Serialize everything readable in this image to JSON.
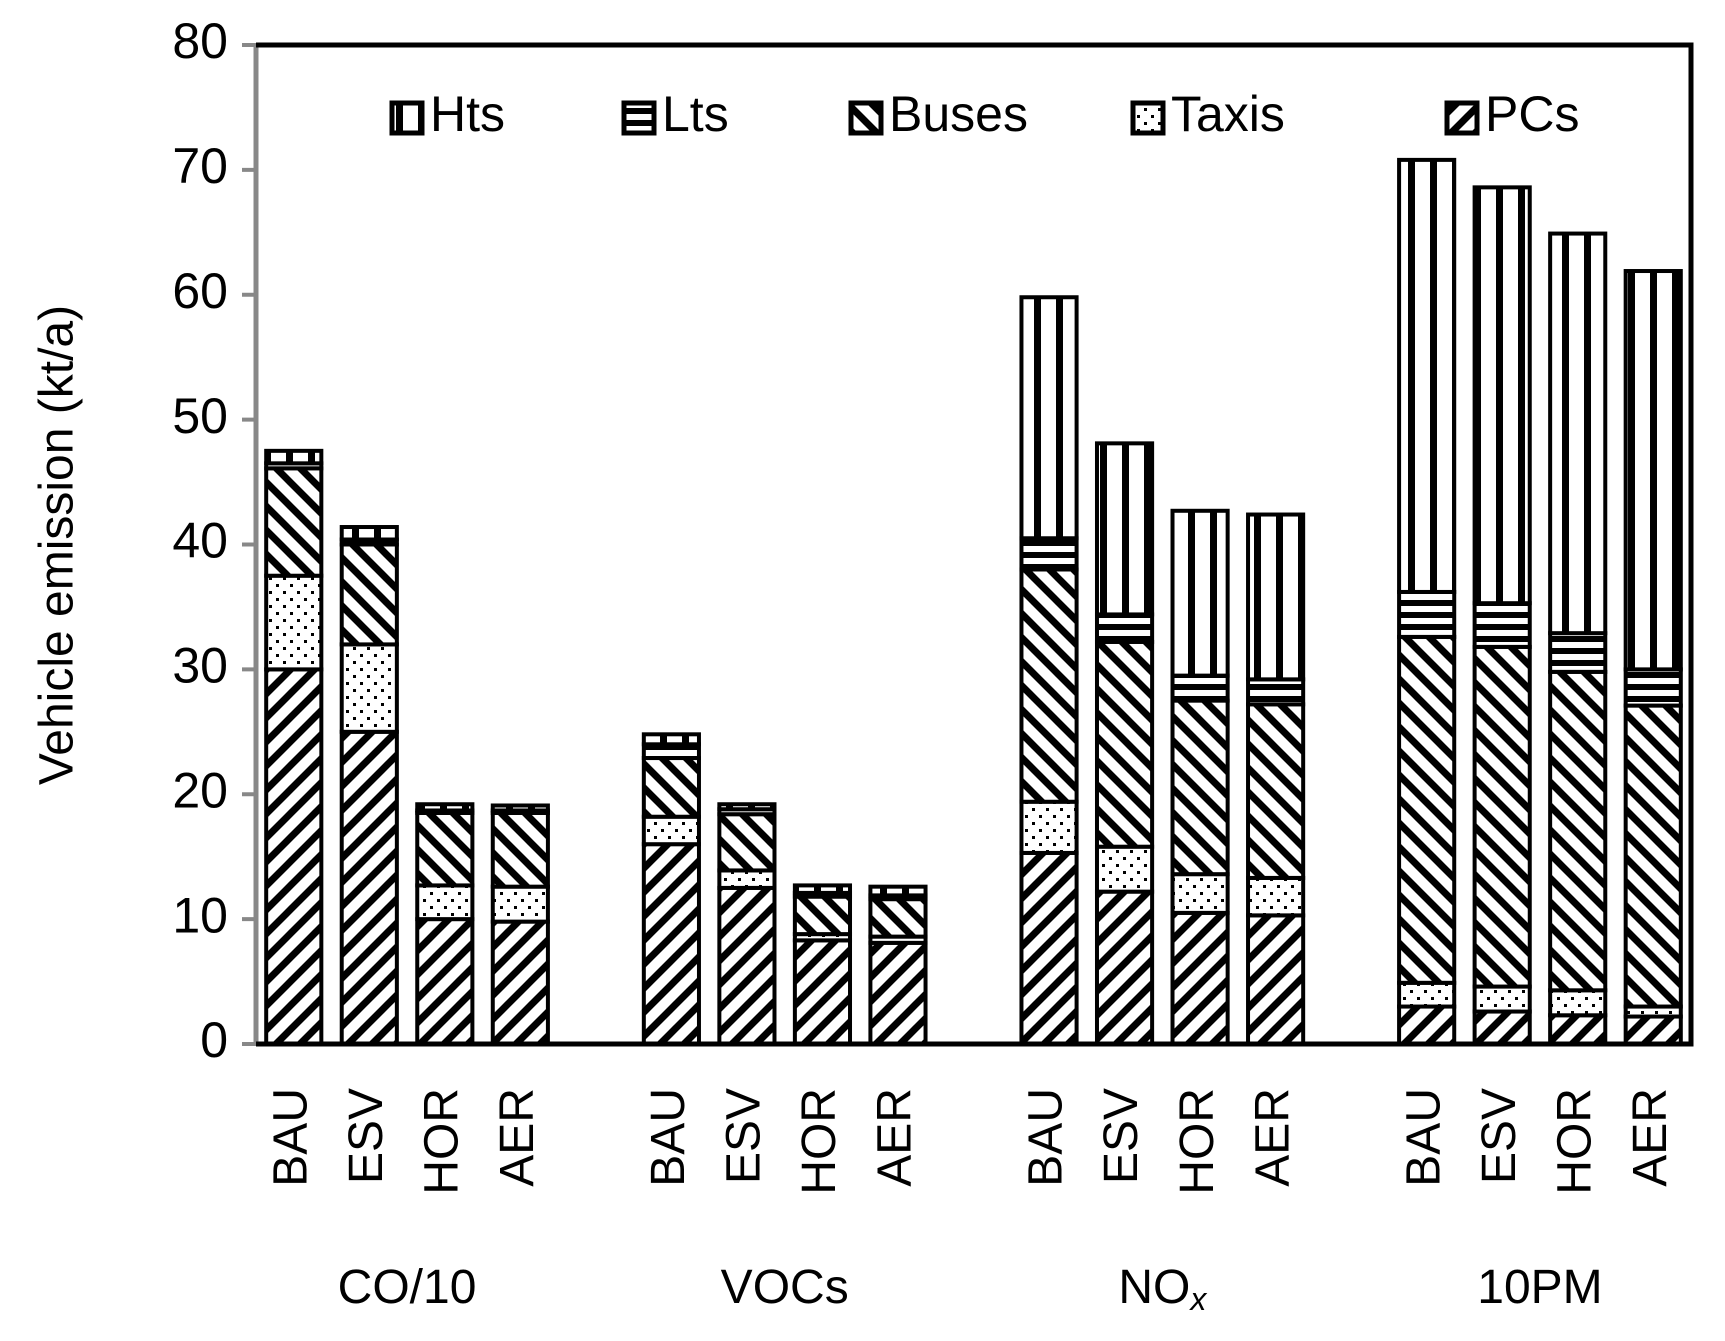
{
  "chart_data": {
    "type": "stacked-bar",
    "ylabel": "Vehicle emission (kt/a)",
    "categories": [
      "BAU",
      "ESV",
      "HOR",
      "AER",
      "BAU",
      "ESV",
      "HOR",
      "AER",
      "BAU",
      "ESV",
      "HOR",
      "AER",
      "BAU",
      "ESV",
      "HOR",
      "AER"
    ],
    "groups": [
      {
        "label": "CO/10"
      },
      {
        "label": "VOCs"
      },
      {
        "label": "NO",
        "subscript": "x"
      },
      {
        "label": "10PM"
      }
    ],
    "series": [
      {
        "name": "Hts",
        "color": "#000000",
        "pattern": "vertical",
        "values": [
          1.0,
          1.0,
          0.5,
          0.4,
          0.8,
          0.4,
          0.6,
          0.7,
          19.3,
          13.7,
          13.2,
          13.2,
          34.6,
          33.3,
          32.0,
          31.9
        ]
      },
      {
        "name": "Lts",
        "color": "#000000",
        "pattern": "horizontal",
        "values": [
          0.4,
          0.4,
          0.2,
          0.2,
          1.1,
          0.4,
          0.3,
          0.3,
          2.5,
          2.2,
          2.0,
          2.0,
          3.6,
          3.5,
          3.1,
          2.9
        ]
      },
      {
        "name": "Buses",
        "color": "#000000",
        "pattern": "diagonal-down",
        "values": [
          8.6,
          8.0,
          5.8,
          5.9,
          4.7,
          4.5,
          3.0,
          3.0,
          18.6,
          16.4,
          13.9,
          13.9,
          27.7,
          27.2,
          25.5,
          24.1
        ]
      },
      {
        "name": "Taxis",
        "color": "#000000",
        "pattern": "dots",
        "values": [
          7.5,
          7.0,
          2.7,
          2.8,
          2.2,
          1.4,
          0.5,
          0.5,
          4.1,
          3.6,
          3.1,
          3.0,
          1.9,
          2.0,
          2.0,
          0.8
        ]
      },
      {
        "name": "PCs",
        "color": "#000000",
        "pattern": "diagonal-up",
        "values": [
          30.0,
          25.0,
          10.0,
          9.8,
          16.0,
          12.5,
          8.3,
          8.1,
          15.3,
          12.2,
          10.5,
          10.3,
          3.0,
          2.6,
          2.3,
          2.2
        ]
      }
    ],
    "stack_order": "bottom-up-from-last",
    "ylim": [
      0,
      80
    ],
    "yticks": [
      0,
      10,
      20,
      30,
      40,
      50,
      60,
      70,
      80
    ],
    "grid": false,
    "legend": "top"
  }
}
